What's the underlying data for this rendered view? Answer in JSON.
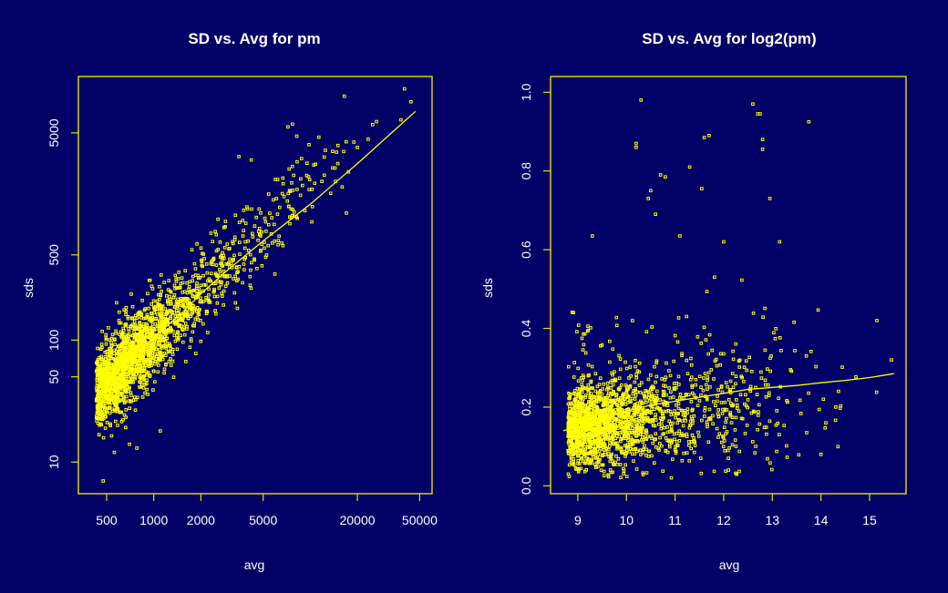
{
  "chart_data": [
    {
      "type": "scatter",
      "title": "SD vs. Avg for pm",
      "xlabel": "avg",
      "ylabel": "sds",
      "x_scale": "log",
      "y_scale": "log",
      "xlim": [
        330,
        60000
      ],
      "ylim": [
        5.5,
        14500
      ],
      "x_ticks": [
        500,
        1000,
        2000,
        5000,
        20000,
        50000
      ],
      "x_tick_labels": [
        "500",
        "1000",
        "2000",
        "5000",
        "20000",
        "50000"
      ],
      "y_ticks": [
        10,
        50,
        100,
        500,
        5000
      ],
      "y_tick_labels": [
        "10",
        "50",
        "100",
        "500",
        "5000"
      ],
      "point_count": 1900,
      "trend": {
        "x": [
          420,
          500,
          700,
          1000,
          1500,
          2000,
          3000,
          5000,
          10000,
          20000,
          47000
        ],
        "y": [
          32,
          45,
          70,
          105,
          165,
          240,
          380,
          650,
          1300,
          2800,
          7500
        ]
      },
      "outliers": {
        "x": [
          475,
          16500,
          40000,
          44000,
          7200,
          7700,
          8200,
          12500,
          15000,
          19000,
          13500,
          14500,
          16000,
          17000,
          38000,
          20000,
          560,
          700,
          780,
          1100,
          3500,
          4200
        ],
        "y": [
          7,
          10000,
          11500,
          9000,
          5600,
          5900,
          4700,
          3600,
          2800,
          4200,
          1600,
          2000,
          1800,
          1100,
          6400,
          3800,
          12,
          14,
          13,
          18,
          3200,
          3000
        ]
      },
      "grid": false,
      "legend": "none"
    },
    {
      "type": "scatter",
      "title": "SD vs. Avg for log2(pm)",
      "xlabel": "avg",
      "ylabel": "sds",
      "xlim": [
        8.44,
        15.75
      ],
      "ylim": [
        -0.02,
        1.04
      ],
      "x_ticks": [
        9,
        10,
        11,
        12,
        13,
        14,
        15
      ],
      "x_tick_labels": [
        "9",
        "10",
        "11",
        "12",
        "13",
        "14",
        "15"
      ],
      "y_ticks": [
        0.0,
        0.2,
        0.4,
        0.6,
        0.8,
        1.0
      ],
      "y_tick_labels": [
        "0.0",
        "0.2",
        "0.4",
        "0.6",
        "0.8",
        "1.0"
      ],
      "point_count": 1900,
      "trend": {
        "x": [
          8.7,
          9.0,
          9.5,
          10.0,
          10.5,
          11.0,
          11.5,
          12.0,
          12.5,
          13.0,
          13.5,
          14.0,
          14.5,
          15.0,
          15.5
        ],
        "y": [
          0.14,
          0.15,
          0.17,
          0.19,
          0.205,
          0.215,
          0.225,
          0.235,
          0.245,
          0.25,
          0.255,
          0.262,
          0.268,
          0.275,
          0.285
        ]
      },
      "outliers": {
        "x": [
          10.3,
          12.6,
          12.75,
          12.7,
          13.75,
          10.2,
          10.2,
          11.7,
          11.6,
          10.7,
          10.8,
          11.55,
          12.8,
          12.8,
          12.95,
          11.3,
          9.3,
          10.5,
          10.45,
          10.6,
          13.15,
          12.0,
          11.1,
          15.15,
          15.45,
          14.05,
          14.1,
          14.0,
          13.7
        ],
        "y": [
          0.98,
          0.97,
          0.945,
          0.945,
          0.925,
          0.87,
          0.86,
          0.89,
          0.885,
          0.79,
          0.785,
          0.755,
          0.88,
          0.855,
          0.73,
          0.81,
          0.635,
          0.75,
          0.73,
          0.69,
          0.62,
          0.62,
          0.635,
          0.42,
          0.32,
          0.22,
          0.16,
          0.08,
          0.33
        ]
      },
      "grid": false,
      "legend": "none"
    }
  ]
}
